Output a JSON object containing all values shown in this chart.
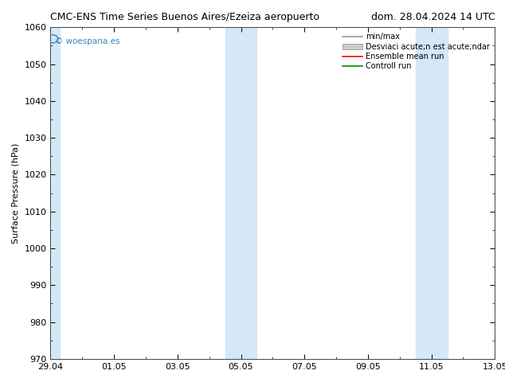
{
  "title_left": "CMC-ENS Time Series Buenos Aires/Ezeiza aeropuerto",
  "title_right": "dom. 28.04.2024 14 UTC",
  "ylabel": "Surface Pressure (hPa)",
  "ylim": [
    970,
    1060
  ],
  "yticks": [
    970,
    980,
    990,
    1000,
    1010,
    1020,
    1030,
    1040,
    1050,
    1060
  ],
  "xtick_positions": [
    0,
    2,
    4,
    6,
    8,
    10,
    12,
    14
  ],
  "xtick_labels": [
    "29.04",
    "01.05",
    "03.05",
    "05.05",
    "07.05",
    "09.05",
    "11.05",
    "13.05"
  ],
  "xlim": [
    0,
    14
  ],
  "shaded_bands": [
    {
      "xmin": -0.3,
      "xmax": 0.3
    },
    {
      "xmin": 5.5,
      "xmax": 6.0
    },
    {
      "xmin": 6.0,
      "xmax": 6.5
    },
    {
      "xmin": 11.5,
      "xmax": 12.0
    },
    {
      "xmin": 12.0,
      "xmax": 12.5
    }
  ],
  "background_color": "#ffffff",
  "plot_bg_color": "#ffffff",
  "shaded_color": "#d4e8f7",
  "legend_label_minmax": "min/max",
  "legend_label_std": "Desviaci acute;n est acute;ndar",
  "legend_label_ens": "Ensemble mean run",
  "legend_label_ctrl": "Controll run",
  "legend_color_minmax": "#999999",
  "legend_color_std": "#cccccc",
  "legend_color_ens": "#ff0000",
  "legend_color_ctrl": "#008800",
  "watermark": "© woespana.es",
  "watermark_color": "#3388bb",
  "title_fontsize": 9,
  "axis_label_fontsize": 8,
  "tick_fontsize": 8,
  "legend_fontsize": 7
}
